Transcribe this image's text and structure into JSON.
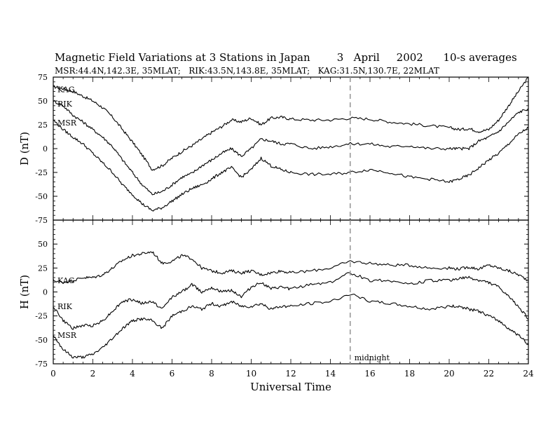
{
  "header": {
    "title": "Magnetic Field Variations at 3 Stations in Japan        3   April     2002      10-s averages",
    "subtitle": "MSR:44.4N,142.3E, 35MLAT;   RIK:43.5N,143.8E, 35MLAT;   KAG:31.5N,130.7E, 22MLAT"
  },
  "chart_data": [
    {
      "type": "line",
      "ylabel": "D (nT)",
      "ylim": [
        -75,
        75
      ],
      "yticks": [
        "75",
        "50",
        "25",
        "0",
        "-25",
        "-50",
        "-75"
      ],
      "xlim": [
        0,
        24
      ],
      "series": [
        {
          "name": "KAG",
          "x": [
            0,
            0.5,
            1,
            1.5,
            2,
            2.5,
            3,
            3.5,
            4,
            4.5,
            5,
            5.5,
            6,
            6.5,
            7,
            7.5,
            8,
            8.5,
            9,
            9.5,
            10,
            10.5,
            11,
            11.5,
            12,
            13,
            14,
            15,
            16,
            17,
            18,
            19,
            20,
            20.5,
            21,
            21.5,
            22,
            22.5,
            23,
            23.5,
            24
          ],
          "values": [
            65,
            63,
            60,
            55,
            50,
            43,
            33,
            20,
            7,
            -7,
            -22,
            -18,
            -10,
            -3,
            3,
            10,
            17,
            23,
            30,
            28,
            32,
            25,
            32,
            33,
            31,
            30,
            30,
            32,
            31,
            28,
            26,
            24,
            22,
            20,
            21,
            18,
            20,
            30,
            45,
            60,
            75
          ]
        },
        {
          "name": "RIK",
          "x": [
            0,
            0.5,
            1,
            1.5,
            2,
            2.5,
            3,
            3.5,
            4,
            4.5,
            5,
            5.5,
            6,
            6.5,
            7,
            7.5,
            8,
            8.5,
            9,
            9.5,
            10,
            10.5,
            11,
            11.5,
            12,
            13,
            14,
            15,
            16,
            17,
            18,
            19,
            20,
            20.5,
            21,
            21.5,
            22,
            22.5,
            23,
            23.5,
            24
          ],
          "values": [
            50,
            45,
            35,
            28,
            20,
            12,
            2,
            -12,
            -25,
            -38,
            -48,
            -45,
            -38,
            -30,
            -26,
            -18,
            -12,
            -5,
            0,
            -8,
            0,
            10,
            8,
            5,
            5,
            0,
            2,
            5,
            5,
            2,
            3,
            0,
            0,
            0,
            0,
            8,
            12,
            18,
            28,
            38,
            42
          ]
        },
        {
          "name": "MSR",
          "x": [
            0,
            0.5,
            1,
            1.5,
            2,
            2.5,
            3,
            3.5,
            4,
            4.5,
            5,
            5.5,
            6,
            6.5,
            7,
            7.5,
            8,
            8.5,
            9,
            9.5,
            10,
            10.5,
            11,
            11.5,
            12,
            13,
            14,
            15,
            16,
            17,
            18,
            19,
            20,
            20.5,
            21,
            21.5,
            22,
            22.5,
            23,
            23.5,
            24
          ],
          "values": [
            30,
            20,
            12,
            5,
            -5,
            -15,
            -25,
            -38,
            -48,
            -58,
            -65,
            -62,
            -55,
            -48,
            -42,
            -38,
            -32,
            -25,
            -20,
            -30,
            -22,
            -10,
            -18,
            -22,
            -25,
            -27,
            -27,
            -25,
            -22,
            -25,
            -30,
            -32,
            -35,
            -32,
            -28,
            -20,
            -12,
            -5,
            5,
            15,
            22
          ]
        }
      ]
    },
    {
      "type": "line",
      "ylabel": "H (nT)",
      "ylim": [
        -75,
        75
      ],
      "yticks": [
        "50",
        "25",
        "0",
        "-25",
        "-50",
        "-75"
      ],
      "xlim": [
        0,
        24
      ],
      "xlabel": "Universal Time",
      "xticks": [
        "0",
        "2",
        "4",
        "6",
        "8",
        "10",
        "12",
        "14",
        "16",
        "18",
        "20",
        "22",
        "24"
      ],
      "series": [
        {
          "name": "KAG",
          "x": [
            0,
            0.5,
            1,
            1.5,
            2,
            2.5,
            3,
            3.5,
            4,
            4.5,
            5,
            5.5,
            6,
            6.5,
            7,
            7.5,
            8,
            8.5,
            9,
            9.5,
            10,
            10.5,
            11,
            11.5,
            12,
            13,
            14,
            15,
            16,
            17,
            18,
            19,
            20,
            20.5,
            21,
            21.5,
            22,
            22.5,
            23,
            23.5,
            24
          ],
          "values": [
            12,
            10,
            12,
            15,
            15,
            18,
            25,
            33,
            38,
            40,
            42,
            30,
            32,
            38,
            35,
            25,
            22,
            20,
            22,
            20,
            22,
            18,
            20,
            22,
            20,
            22,
            25,
            32,
            30,
            28,
            28,
            25,
            25,
            24,
            26,
            24,
            28,
            25,
            22,
            18,
            12
          ]
        },
        {
          "name": "RIK",
          "x": [
            0,
            0.5,
            1,
            1.5,
            2,
            2.5,
            3,
            3.5,
            4,
            4.5,
            5,
            5.5,
            6,
            6.5,
            7,
            7.5,
            8,
            8.5,
            9,
            9.5,
            10,
            10.5,
            11,
            11.5,
            12,
            13,
            14,
            15,
            16,
            17,
            18,
            19,
            20,
            20.5,
            21,
            21.5,
            22,
            22.5,
            23,
            23.5,
            24
          ],
          "values": [
            -15,
            -30,
            -38,
            -35,
            -35,
            -30,
            -20,
            -10,
            -8,
            -12,
            -10,
            -18,
            -5,
            0,
            8,
            0,
            5,
            0,
            2,
            -5,
            5,
            10,
            3,
            5,
            3,
            8,
            10,
            20,
            12,
            12,
            8,
            12,
            12,
            14,
            15,
            12,
            10,
            5,
            -5,
            -15,
            -28
          ]
        },
        {
          "name": "MSR",
          "x": [
            0,
            0.5,
            1,
            1.5,
            2,
            2.5,
            3,
            3.5,
            4,
            4.5,
            5,
            5.5,
            6,
            6.5,
            7,
            7.5,
            8,
            8.5,
            9,
            9.5,
            10,
            10.5,
            11,
            11.5,
            12,
            13,
            14,
            15,
            16,
            17,
            18,
            19,
            20,
            20.5,
            21,
            21.5,
            22,
            22.5,
            23,
            23.5,
            24
          ],
          "values": [
            -45,
            -60,
            -68,
            -68,
            -65,
            -58,
            -48,
            -38,
            -30,
            -28,
            -30,
            -38,
            -25,
            -20,
            -15,
            -18,
            -12,
            -15,
            -10,
            -15,
            -15,
            -12,
            -18,
            -15,
            -15,
            -12,
            -10,
            -2,
            -10,
            -12,
            -15,
            -18,
            -15,
            -15,
            -18,
            -20,
            -25,
            -30,
            -38,
            -45,
            -55
          ]
        }
      ]
    }
  ],
  "annotations": {
    "midnight_label": "midnight",
    "midnight_ut": 15
  }
}
